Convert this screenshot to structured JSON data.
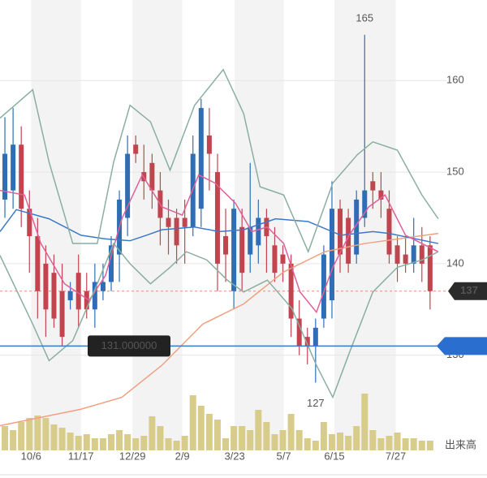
{
  "chart_data": {
    "type": "candlestick",
    "xlim": [
      -0.6,
      54
    ],
    "xticks": [
      {
        "value": 3.2,
        "label": "10/6"
      },
      {
        "value": 9.3,
        "label": "11/17"
      },
      {
        "value": 15.6,
        "label": "12/29"
      },
      {
        "value": 21.7,
        "label": "2/9"
      },
      {
        "value": 28.1,
        "label": "3/23"
      },
      {
        "value": 34.1,
        "label": "5/7"
      },
      {
        "value": 40.3,
        "label": "6/15"
      },
      {
        "value": 47.8,
        "label": "7/27"
      }
    ],
    "ylim": [
      119.6,
      168.8
    ],
    "yticks": [
      130,
      140,
      150,
      160
    ],
    "up_color": "#2f6db5",
    "down_color": "#c0454f",
    "candles": {
      "open": [
        147,
        148,
        153,
        146,
        143,
        140,
        139,
        137,
        136,
        139,
        137,
        135,
        137,
        138,
        141,
        145,
        153,
        150,
        151,
        148,
        145,
        145,
        145,
        144,
        146,
        154,
        150,
        143,
        137,
        144,
        141,
        142,
        145,
        142,
        141,
        140,
        134,
        132,
        131,
        134,
        136,
        146,
        145,
        141,
        145,
        149,
        148,
        146,
        142,
        141,
        140,
        142,
        142
      ],
      "close": [
        152,
        153,
        146,
        143,
        137,
        135,
        134,
        132,
        137,
        135,
        135,
        138,
        138,
        142,
        147,
        152,
        152,
        149,
        148,
        145,
        144,
        142,
        144,
        152,
        157,
        152,
        140,
        141,
        146,
        139,
        144,
        145,
        143,
        139,
        140,
        134,
        131,
        131,
        133,
        141,
        146,
        141,
        140,
        147,
        148,
        148,
        147,
        141,
        140,
        140,
        142,
        140,
        137
      ],
      "high": [
        156,
        157,
        155,
        148,
        145,
        142,
        141,
        140,
        138,
        141,
        139,
        140,
        140,
        143,
        148,
        154,
        154,
        153,
        152,
        150,
        147,
        146,
        147,
        154,
        158,
        157,
        152,
        146,
        147,
        146,
        151,
        147,
        146,
        144,
        142,
        141,
        136,
        133,
        134,
        142,
        149,
        147,
        146,
        148,
        165,
        150,
        150,
        148,
        143,
        143,
        145,
        144,
        143
      ],
      "low": [
        145,
        146,
        144,
        139,
        134,
        132,
        133,
        131,
        135,
        133,
        134,
        133,
        136,
        137,
        138,
        143,
        151,
        147,
        146,
        142,
        141,
        140,
        140,
        143,
        144,
        148,
        137,
        138,
        135,
        137,
        139,
        140,
        139,
        138,
        138,
        132,
        130,
        129,
        127,
        133,
        134,
        139,
        139,
        140,
        144,
        146,
        145,
        140,
        138,
        139,
        139,
        138,
        135
      ]
    },
    "lines": [
      {
        "color": "#f0a080",
        "x": [
          -0.6,
          9.3,
          14.3,
          19.2,
          24.2,
          29.2,
          34.1,
          39.1,
          44.0,
          53.0
        ],
        "values": [
          122.3,
          124.1,
          125.4,
          128.9,
          133.4,
          135.6,
          139.1,
          141.3,
          142.2,
          143.3
        ]
      },
      {
        "color": "#3c78c8",
        "x": [
          -0.6,
          1.4,
          5.4,
          9.3,
          12.3,
          15.3,
          17.3,
          19.2,
          23.2,
          26.2,
          29.2,
          33.1,
          37.1,
          41.1,
          45.0,
          47.0,
          53.0
        ],
        "values": [
          143.5,
          145.9,
          144.9,
          143.1,
          142.7,
          142.5,
          143.1,
          143.7,
          144,
          143.5,
          143.7,
          144.9,
          144.6,
          143.1,
          143.5,
          143.3,
          142.2
        ]
      },
      {
        "color": "#e0609a",
        "x": [
          -0.6,
          2.4,
          4.4,
          7.3,
          10.3,
          12.3,
          14.3,
          16.8,
          19.2,
          21.7,
          23.7,
          25.7,
          28.2,
          30.2,
          32.1,
          34.1,
          36.1,
          38.1,
          40.1,
          42.1,
          44.5,
          46.5,
          49.0,
          53.0
        ],
        "values": [
          148,
          147.5,
          142.2,
          137.8,
          136,
          138.7,
          144.9,
          149.7,
          146.2,
          145.3,
          149.7,
          148.8,
          146.6,
          143.5,
          144,
          142.2,
          136.9,
          134.7,
          139.6,
          143.1,
          146.2,
          147.5,
          143.1,
          141.3
        ]
      },
      {
        "color": "#8aaea3",
        "x": [
          -0.6,
          3.4,
          5.4,
          8.3,
          11.3,
          13.3,
          15.3,
          17.8,
          20.2,
          23.2,
          26.7,
          29.2,
          31.2,
          34.1,
          37.1,
          40.1,
          43.1,
          45.0,
          48.0,
          51.0,
          53.0
        ],
        "values": [
          155.9,
          159,
          151.1,
          142.2,
          142.2,
          151.1,
          157.3,
          155.5,
          150.2,
          157.3,
          161.2,
          156.4,
          148.4,
          147.5,
          141.3,
          148.8,
          151.9,
          153.3,
          152.4,
          147.5,
          144.9
        ]
      },
      {
        "color": "#8aaea3",
        "x": [
          -0.6,
          3.4,
          5.4,
          8.3,
          11.3,
          13.3,
          15.3,
          17.8,
          20.2,
          22.2,
          24.7,
          27.2,
          29.2,
          32.1,
          35.1,
          38.1,
          40.1,
          42.1,
          45.0,
          48.0,
          51.0,
          53.0
        ],
        "values": [
          140.9,
          133.4,
          129.4,
          131.6,
          137.8,
          142.2,
          140,
          137.8,
          139.6,
          141.3,
          140.4,
          138.2,
          136.9,
          138.2,
          135.1,
          128.9,
          125.4,
          130.2,
          136.9,
          139.6,
          140.4,
          141.3
        ]
      }
    ],
    "volume_label": "出来高",
    "volume_color": "#d8cc8a",
    "volume_ylim": [
      0,
      80
    ],
    "volume": [
      30,
      25,
      35,
      40,
      43,
      40,
      32,
      28,
      22,
      18,
      20,
      15,
      15,
      20,
      25,
      20,
      15,
      18,
      42,
      30,
      15,
      12,
      18,
      68,
      55,
      45,
      38,
      15,
      30,
      30,
      25,
      50,
      35,
      20,
      25,
      45,
      25,
      15,
      12,
      35,
      20,
      22,
      18,
      30,
      70,
      25,
      15,
      18,
      22,
      15,
      15,
      12,
      12
    ],
    "high_mark": 165,
    "low_mark": 127,
    "current_price": 137,
    "crosshair_value": 131,
    "crosshair_label": "131.000000"
  }
}
